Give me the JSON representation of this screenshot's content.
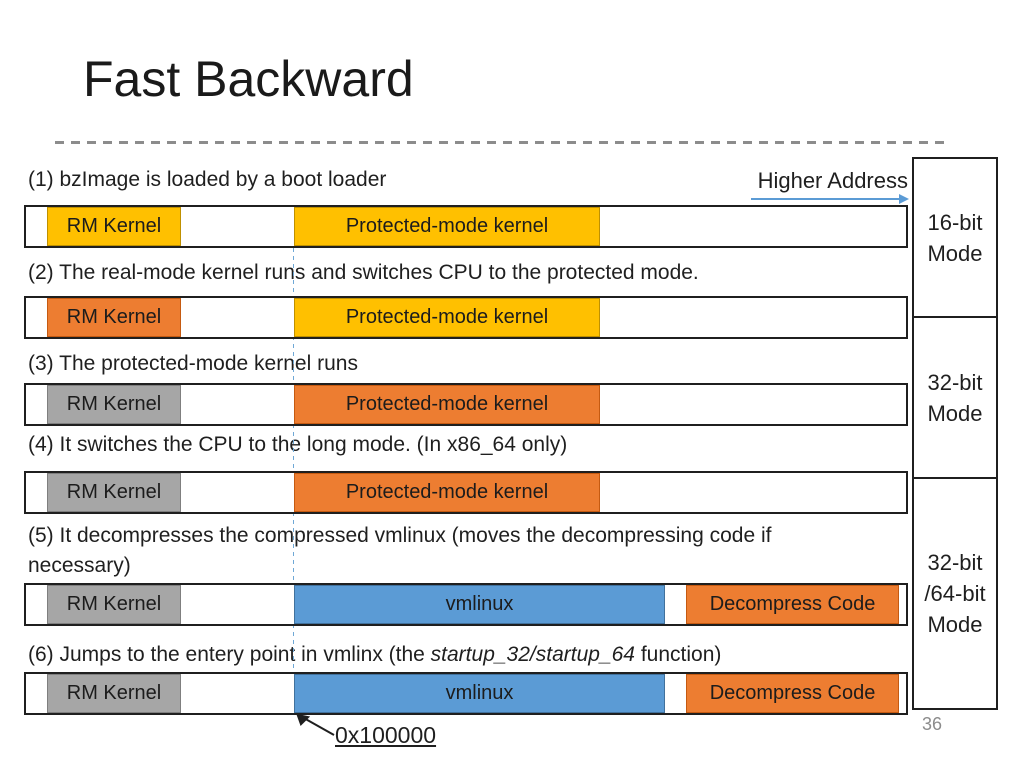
{
  "title": "Fast Backward",
  "page_number": "36",
  "higher_address_label": "Higher Address",
  "entry_address_label": "0x100000",
  "steps": {
    "s1": "(1) bzImage is loaded by a boot loader",
    "s2": "(2) The real-mode kernel runs and switches CPU to the protected mode.",
    "s3": "(3) The protected-mode kernel runs",
    "s4": "(4) It switches the CPU to the long mode. (In x86_64 only)",
    "s5": "(5) It decompresses the compressed vmlinux (moves the decompressing code if\nnecessary)",
    "s6_pre": "(6) Jumps to the entery point in vmlinx (the ",
    "s6_italic": "startup_32/startup_64",
    "s6_post": " function)"
  },
  "colors": {
    "gold": "#FFC000",
    "gold_border": "#BF9000",
    "orange": "#ED7D31",
    "orange_border": "#C55A11",
    "gray": "#A6A6A6",
    "gray_border": "#7F7F7F",
    "blue": "#5B9BD5",
    "blue_border": "#41719C",
    "arrow_blue": "#5B9BD5",
    "dashed_address_line": "#6FA8D6",
    "bar_border": "#1F1F1F"
  },
  "bars": [
    {
      "segments": [
        {
          "kind": "rm",
          "label": "RM Kernel",
          "color": "gold"
        },
        {
          "kind": "pm",
          "label": "Protected-mode kernel",
          "color": "gold"
        }
      ]
    },
    {
      "segments": [
        {
          "kind": "rm",
          "label": "RM Kernel",
          "color": "orange"
        },
        {
          "kind": "pm",
          "label": "Protected-mode kernel",
          "color": "gold"
        }
      ]
    },
    {
      "segments": [
        {
          "kind": "rm",
          "label": "RM Kernel",
          "color": "gray"
        },
        {
          "kind": "pm",
          "label": "Protected-mode kernel",
          "color": "orange"
        }
      ]
    },
    {
      "segments": [
        {
          "kind": "rm",
          "label": "RM Kernel",
          "color": "gray"
        },
        {
          "kind": "pm",
          "label": "Protected-mode kernel",
          "color": "orange"
        }
      ]
    },
    {
      "segments": [
        {
          "kind": "rm",
          "label": "RM Kernel",
          "color": "gray"
        },
        {
          "kind": "vmlinux",
          "label": "vmlinux",
          "color": "blue"
        },
        {
          "kind": "decomp",
          "label": "Decompress Code",
          "color": "orange"
        }
      ]
    },
    {
      "segments": [
        {
          "kind": "rm",
          "label": "RM Kernel",
          "color": "gray"
        },
        {
          "kind": "vmlinux",
          "label": "vmlinux",
          "color": "blue"
        },
        {
          "kind": "decomp",
          "label": "Decompress Code",
          "color": "orange"
        }
      ]
    }
  ],
  "mode_boxes": [
    {
      "label": "16-bit\nMode"
    },
    {
      "label": "32-bit\nMode"
    },
    {
      "label": "32-bit\n/64-bit\nMode"
    }
  ]
}
